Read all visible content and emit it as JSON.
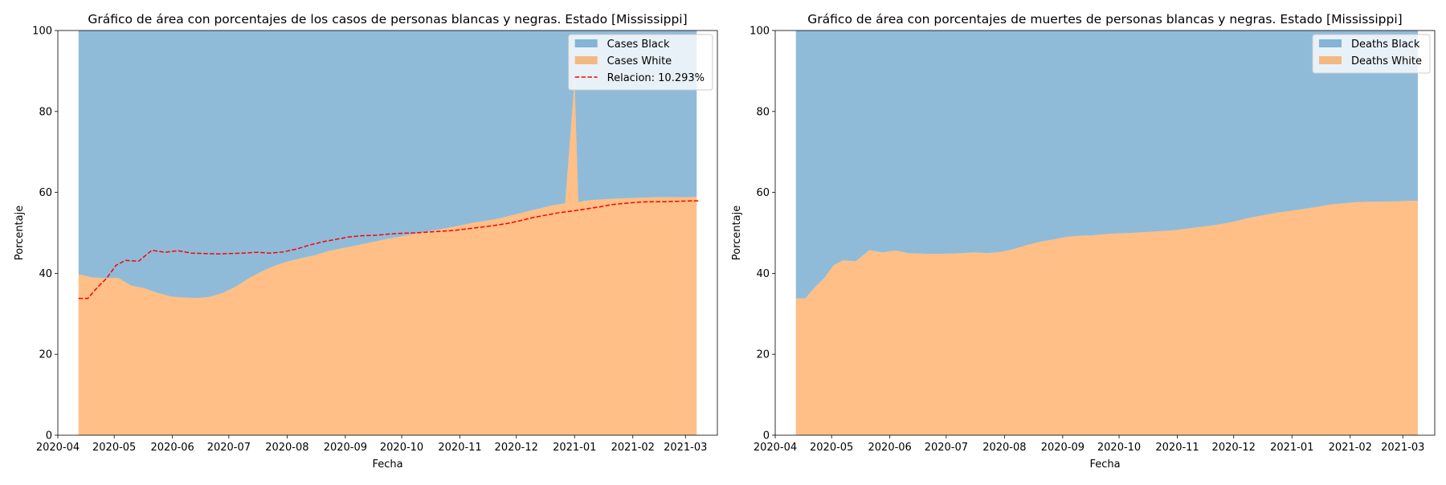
{
  "colors": {
    "black": "#1f77b4",
    "white": "#ff7f0e",
    "relacion": "#ff0000",
    "area_alpha": 0.5
  },
  "chart_data": [
    {
      "type": "area",
      "stacked": true,
      "percent": true,
      "title": "Gráfico de área con porcentajes de los casos de personas blancas y negras. Estado [Mississippi]",
      "xlabel": "Fecha",
      "ylabel": "Porcentaje",
      "ylim": [
        0,
        100
      ],
      "yticks": [
        0,
        20,
        40,
        60,
        80,
        100
      ],
      "xlim": [
        "2020-04-01",
        "2021-03-18"
      ],
      "xticks": [
        "2020-04",
        "2020-05",
        "2020-06",
        "2020-07",
        "2020-08",
        "2020-09",
        "2020-10",
        "2020-11",
        "2020-12",
        "2021-01",
        "2021-02",
        "2021-03"
      ],
      "legend_position": "top-right",
      "x": [
        "2020-04-12",
        "2020-04-19",
        "2020-04-26",
        "2020-05-03",
        "2020-05-10",
        "2020-05-17",
        "2020-05-24",
        "2020-05-31",
        "2020-06-07",
        "2020-06-14",
        "2020-06-21",
        "2020-06-28",
        "2020-07-05",
        "2020-07-12",
        "2020-07-19",
        "2020-07-26",
        "2020-08-02",
        "2020-08-09",
        "2020-08-16",
        "2020-08-23",
        "2020-08-30",
        "2020-09-06",
        "2020-09-13",
        "2020-09-20",
        "2020-09-27",
        "2020-10-04",
        "2020-10-11",
        "2020-10-18",
        "2020-10-25",
        "2020-11-01",
        "2020-11-08",
        "2020-11-15",
        "2020-11-22",
        "2020-11-29",
        "2020-12-06",
        "2020-12-13",
        "2020-12-20",
        "2020-12-27",
        "2021-01-01",
        "2021-01-03",
        "2021-01-06",
        "2021-01-10",
        "2021-01-17",
        "2021-01-24",
        "2021-01-31",
        "2021-02-07",
        "2021-02-14",
        "2021-02-21",
        "2021-02-28",
        "2021-03-07"
      ],
      "series": [
        {
          "name": "Cases White",
          "kind": "area",
          "values": [
            39.8,
            39.0,
            38.8,
            38.9,
            37.0,
            36.3,
            35.2,
            34.3,
            34.0,
            33.9,
            34.2,
            35.2,
            36.8,
            38.9,
            40.6,
            42.0,
            43.0,
            43.8,
            44.5,
            45.5,
            46.2,
            46.8,
            47.5,
            48.2,
            48.8,
            49.4,
            50.0,
            50.6,
            51.2,
            51.8,
            52.5,
            53.0,
            53.6,
            54.4,
            55.2,
            56.0,
            56.8,
            57.3,
            87.8,
            57.6,
            57.9,
            58.1,
            58.3,
            58.5,
            58.6,
            58.7,
            58.8,
            58.8,
            58.8,
            58.9
          ]
        },
        {
          "name": "Cases Black",
          "kind": "area",
          "values": [
            60.2,
            61.0,
            61.2,
            61.1,
            63.0,
            63.7,
            64.8,
            65.7,
            66.0,
            66.1,
            65.8,
            64.8,
            63.2,
            61.1,
            59.4,
            58.0,
            57.0,
            56.2,
            55.5,
            54.5,
            53.8,
            53.2,
            52.5,
            51.8,
            51.2,
            50.6,
            50.0,
            49.4,
            48.8,
            48.2,
            47.5,
            47.0,
            46.4,
            45.6,
            44.8,
            44.0,
            43.2,
            42.7,
            12.2,
            42.4,
            42.1,
            41.9,
            41.7,
            41.5,
            41.4,
            41.3,
            41.2,
            41.2,
            41.2,
            41.1
          ]
        }
      ],
      "relacion": {
        "name": "Relacion: 10.293%",
        "x": [
          "2020-04-12",
          "2020-04-17",
          "2020-04-22",
          "2020-04-27",
          "2020-05-02",
          "2020-05-07",
          "2020-05-14",
          "2020-05-21",
          "2020-05-28",
          "2020-06-04",
          "2020-06-11",
          "2020-06-18",
          "2020-06-25",
          "2020-07-02",
          "2020-07-09",
          "2020-07-16",
          "2020-07-23",
          "2020-07-30",
          "2020-08-06",
          "2020-08-13",
          "2020-08-20",
          "2020-08-27",
          "2020-09-03",
          "2020-09-10",
          "2020-09-17",
          "2020-09-24",
          "2020-10-01",
          "2020-10-08",
          "2020-10-15",
          "2020-10-22",
          "2020-10-29",
          "2020-11-05",
          "2020-11-12",
          "2020-11-19",
          "2020-11-26",
          "2020-12-03",
          "2020-12-10",
          "2020-12-17",
          "2020-12-24",
          "2020-12-31",
          "2021-01-07",
          "2021-01-14",
          "2021-01-21",
          "2021-01-28",
          "2021-02-04",
          "2021-02-11",
          "2021-02-18",
          "2021-02-25",
          "2021-03-04",
          "2021-03-09"
        ],
        "values": [
          33.8,
          33.8,
          36.5,
          38.8,
          42.0,
          43.2,
          43.0,
          45.7,
          45.2,
          45.6,
          45.0,
          44.9,
          44.8,
          44.9,
          45.0,
          45.2,
          45.0,
          45.3,
          46.0,
          47.0,
          47.8,
          48.4,
          49.0,
          49.3,
          49.4,
          49.7,
          49.9,
          50.0,
          50.2,
          50.4,
          50.6,
          51.0,
          51.4,
          51.8,
          52.3,
          53.0,
          53.8,
          54.4,
          55.0,
          55.4,
          55.9,
          56.4,
          57.0,
          57.3,
          57.6,
          57.7,
          57.7,
          57.8,
          57.9,
          57.9
        ]
      },
      "annotations": []
    },
    {
      "type": "area",
      "stacked": true,
      "percent": true,
      "title": "Gráfico de área con porcentajes de muertes de personas blancas y negras. Estado [Mississippi]",
      "xlabel": "Fecha",
      "ylabel": "Porcentaje",
      "ylim": [
        0,
        100
      ],
      "yticks": [
        0,
        20,
        40,
        60,
        80,
        100
      ],
      "xlim": [
        "2020-04-01",
        "2021-03-18"
      ],
      "xticks": [
        "2020-04",
        "2020-05",
        "2020-06",
        "2020-07",
        "2020-08",
        "2020-09",
        "2020-10",
        "2020-11",
        "2020-12",
        "2021-01",
        "2021-02",
        "2021-03"
      ],
      "legend_position": "top-right",
      "x": [
        "2020-04-12",
        "2020-04-17",
        "2020-04-22",
        "2020-04-27",
        "2020-05-02",
        "2020-05-07",
        "2020-05-14",
        "2020-05-21",
        "2020-05-28",
        "2020-06-04",
        "2020-06-11",
        "2020-06-18",
        "2020-06-25",
        "2020-07-02",
        "2020-07-09",
        "2020-07-16",
        "2020-07-23",
        "2020-07-30",
        "2020-08-06",
        "2020-08-13",
        "2020-08-20",
        "2020-08-27",
        "2020-09-03",
        "2020-09-10",
        "2020-09-17",
        "2020-09-24",
        "2020-10-01",
        "2020-10-08",
        "2020-10-15",
        "2020-10-22",
        "2020-10-29",
        "2020-11-05",
        "2020-11-12",
        "2020-11-19",
        "2020-11-26",
        "2020-12-03",
        "2020-12-10",
        "2020-12-17",
        "2020-12-24",
        "2020-12-31",
        "2021-01-07",
        "2021-01-14",
        "2021-01-21",
        "2021-01-28",
        "2021-02-04",
        "2021-02-11",
        "2021-02-18",
        "2021-02-25",
        "2021-03-04",
        "2021-03-09"
      ],
      "series": [
        {
          "name": "Deaths White",
          "kind": "area",
          "values": [
            33.8,
            33.8,
            36.5,
            38.8,
            42.0,
            43.2,
            43.0,
            45.7,
            45.2,
            45.6,
            45.0,
            44.9,
            44.8,
            44.9,
            45.0,
            45.2,
            45.0,
            45.3,
            46.0,
            47.0,
            47.8,
            48.4,
            49.0,
            49.3,
            49.4,
            49.7,
            49.9,
            50.0,
            50.2,
            50.4,
            50.6,
            51.0,
            51.4,
            51.8,
            52.3,
            53.0,
            53.8,
            54.4,
            55.0,
            55.4,
            55.9,
            56.4,
            57.0,
            57.3,
            57.6,
            57.7,
            57.7,
            57.8,
            57.9,
            57.9
          ]
        },
        {
          "name": "Deaths Black",
          "kind": "area",
          "values": [
            66.2,
            66.2,
            63.5,
            61.2,
            58.0,
            56.8,
            57.0,
            54.3,
            54.8,
            54.4,
            55.0,
            55.1,
            55.2,
            55.1,
            55.0,
            54.8,
            55.0,
            54.7,
            54.0,
            53.0,
            52.2,
            51.6,
            51.0,
            50.7,
            50.6,
            50.3,
            50.1,
            50.0,
            49.8,
            49.6,
            49.4,
            49.0,
            48.6,
            48.2,
            47.7,
            47.0,
            46.2,
            45.6,
            45.0,
            44.6,
            44.1,
            43.6,
            43.0,
            42.7,
            42.4,
            42.3,
            42.3,
            42.2,
            42.1,
            42.1
          ]
        }
      ],
      "annotations": []
    }
  ]
}
